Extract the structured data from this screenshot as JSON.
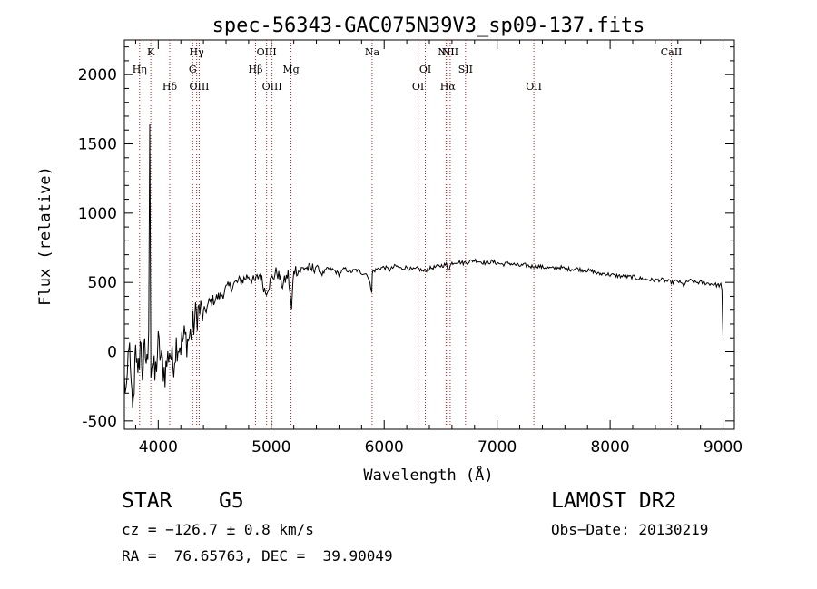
{
  "chart_data": {
    "type": "line",
    "title": "spec-56343-GAC075N39V3_sp09-137.fits",
    "xlabel": "Wavelength (Å)",
    "ylabel": "Flux (relative)",
    "xlim": [
      3700,
      9100
    ],
    "ylim": [
      -560,
      2250
    ],
    "xticks": [
      4000,
      5000,
      6000,
      7000,
      8000,
      9000
    ],
    "yticks": [
      -500,
      0,
      500,
      1000,
      1500,
      2000
    ],
    "grid": false,
    "series": [
      {
        "x": [
          3700,
          3720,
          3740,
          3760,
          3780,
          3800,
          3820,
          3840,
          3860,
          3880,
          3900,
          3915,
          3925,
          3935,
          3950,
          3970,
          4000,
          4030,
          4060,
          4100,
          4130,
          4160,
          4200,
          4230,
          4260,
          4300,
          4330,
          4360,
          4400,
          4450,
          4500,
          4550,
          4600,
          4650,
          4700,
          4750,
          4800,
          4850,
          4900,
          4950,
          5000,
          5050,
          5100,
          5150,
          5180,
          5200,
          5250,
          5300,
          5350,
          5400,
          5450,
          5500,
          5550,
          5600,
          5650,
          5700,
          5750,
          5800,
          5850,
          5890,
          5895,
          5900,
          5950,
          6000,
          6050,
          6100,
          6150,
          6200,
          6250,
          6300,
          6350,
          6400,
          6450,
          6500,
          6550,
          6563,
          6600,
          6650,
          6700,
          6750,
          6800,
          6850,
          6900,
          6950,
          7000,
          7050,
          7100,
          7150,
          7200,
          7250,
          7300,
          7350,
          7400,
          7450,
          7500,
          7550,
          7600,
          7650,
          7700,
          7750,
          7800,
          7850,
          7900,
          7950,
          8000,
          8050,
          8100,
          8150,
          8200,
          8250,
          8300,
          8350,
          8400,
          8450,
          8500,
          8550,
          8600,
          8650,
          8700,
          8750,
          8800,
          8850,
          8900,
          8950,
          8980,
          8990,
          9000
        ],
        "y": [
          -200,
          -350,
          100,
          -300,
          -400,
          120,
          -250,
          80,
          -150,
          0,
          -100,
          150,
          1640,
          -100,
          -50,
          -200,
          50,
          -80,
          -150,
          20,
          -100,
          60,
          50,
          100,
          80,
          150,
          250,
          300,
          270,
          350,
          380,
          400,
          450,
          480,
          500,
          520,
          550,
          500,
          560,
          430,
          520,
          580,
          480,
          560,
          300,
          600,
          580,
          610,
          590,
          620,
          560,
          600,
          590,
          560,
          600,
          575,
          590,
          570,
          560,
          440,
          560,
          580,
          600,
          610,
          590,
          620,
          600,
          610,
          590,
          600,
          580,
          600,
          610,
          620,
          630,
          590,
          640,
          650,
          640,
          650,
          660,
          650,
          640,
          650,
          640,
          630,
          640,
          630,
          620,
          625,
          615,
          620,
          610,
          605,
          600,
          610,
          600,
          595,
          600,
          590,
          585,
          580,
          560,
          565,
          555,
          550,
          545,
          540,
          540,
          530,
          525,
          520,
          515,
          520,
          510,
          500,
          510,
          480,
          515,
          500,
          500,
          495,
          490,
          480,
          480,
          440,
          80
        ]
      }
    ],
    "lines": [
      {
        "label": "Hη",
        "x": 3835
      },
      {
        "label": "K",
        "x": 3934
      },
      {
        "label": "Hδ",
        "x": 4102
      },
      {
        "label": "Hγ",
        "x": 4340
      },
      {
        "label": "G",
        "x": 4305
      },
      {
        "label": "OIII",
        "x": 4363
      },
      {
        "label": "Hβ",
        "x": 4861
      },
      {
        "label": "OIII",
        "x": 4959
      },
      {
        "label": "OIII",
        "x": 5007
      },
      {
        "label": "Mg",
        "x": 5175
      },
      {
        "label": "Na",
        "x": 5893
      },
      {
        "label": "OI",
        "x": 6300
      },
      {
        "label": "OI",
        "x": 6364
      },
      {
        "label": "NII",
        "x": 6548
      },
      {
        "label": "Hα",
        "x": 6563
      },
      {
        "label": "NII",
        "x": 6584
      },
      {
        "label": "SII",
        "x": 6720
      },
      {
        "label": "OII",
        "x": 7325
      },
      {
        "label": "CaII",
        "x": 8542
      }
    ]
  },
  "info": {
    "class": "STAR",
    "subclass": "G5",
    "survey": "LAMOST DR2",
    "cz": "cz = −126.7 ± 0.8 km/s",
    "obs_date": "Obs−Date: 20130219",
    "coords": "RA =  76.65763, DEC =  39.90049"
  }
}
